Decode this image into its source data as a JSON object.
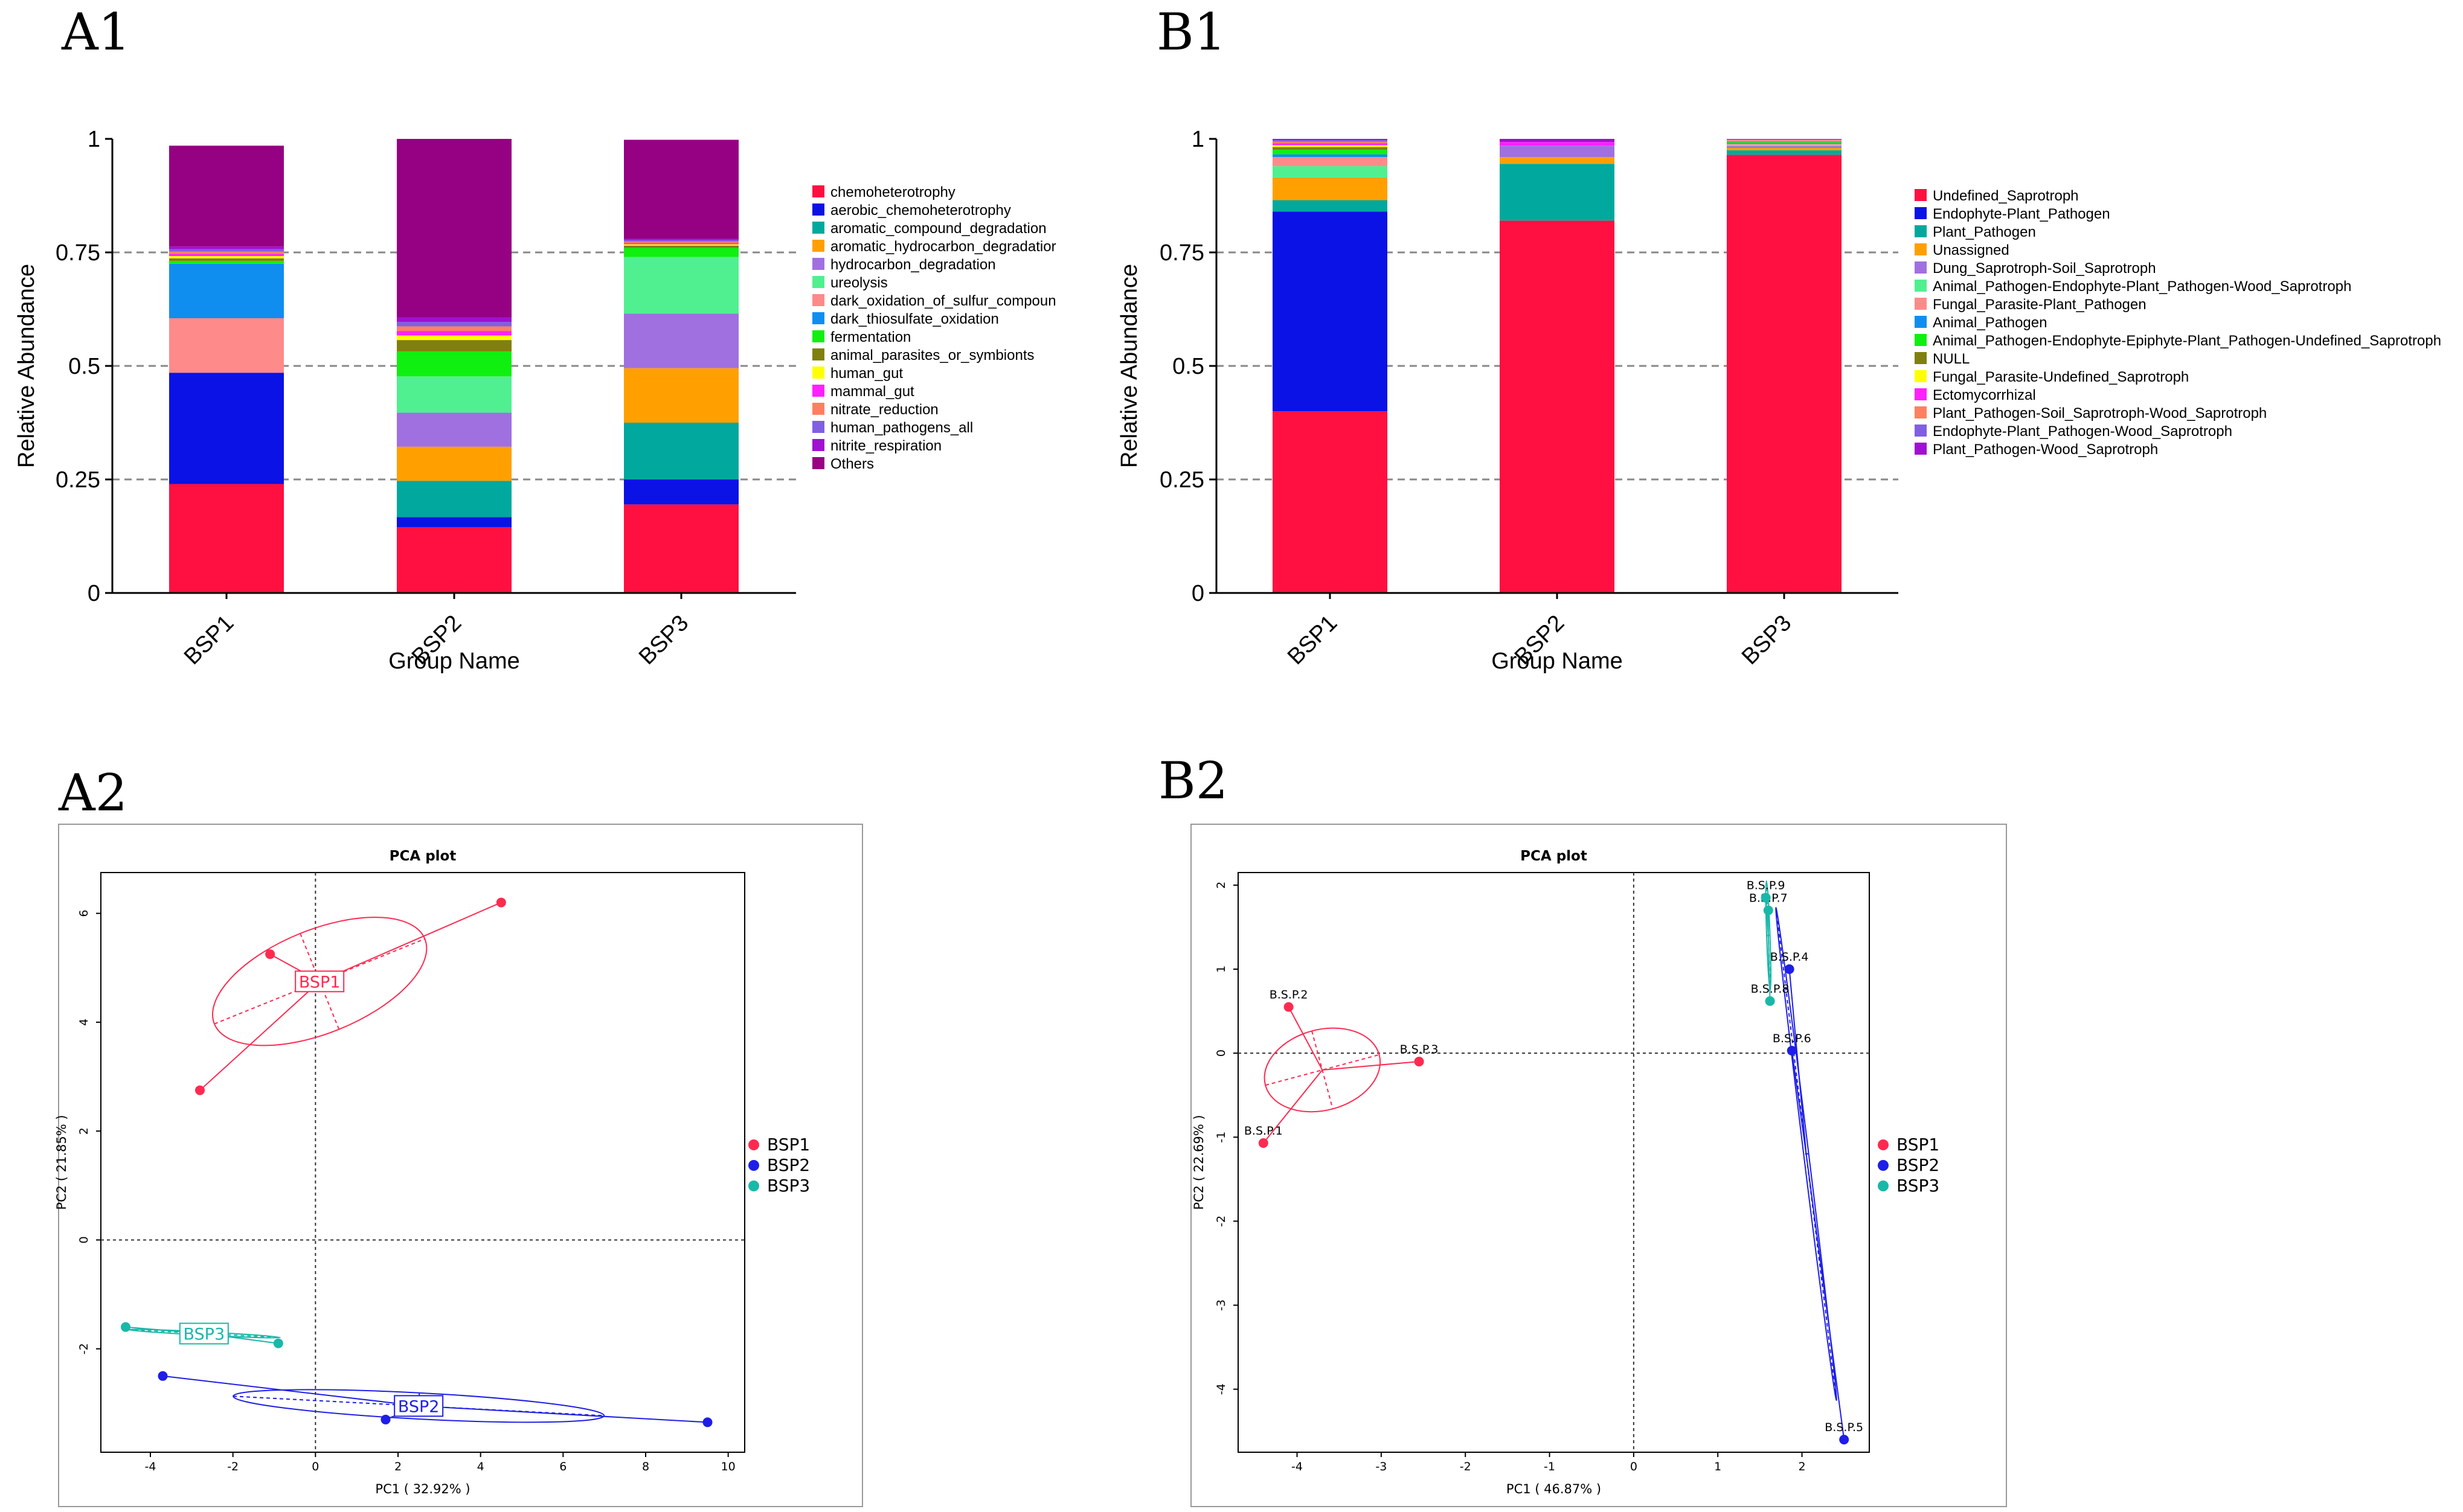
{
  "panels": {
    "a1": "A1",
    "b1": "B1",
    "a2": "A2",
    "b2": "B2"
  },
  "chart_data": [
    {
      "id": "A1",
      "type": "bar",
      "stacked": true,
      "xlabel": "Group Name",
      "ylabel": "Relative Abundance",
      "ylim": [
        0,
        1
      ],
      "yticks": [
        "0",
        "0.25",
        "0.5",
        "0.75",
        "1"
      ],
      "grid": "dashed at 0.25, 0.5, 0.75",
      "legend_position": "right",
      "categories": [
        "BSP1",
        "BSP2",
        "BSP3"
      ],
      "series": [
        {
          "name": "chemoheterotrophy",
          "color": "#ff1040",
          "values": [
            0.24,
            0.145,
            0.195
          ]
        },
        {
          "name": "aerobic_chemoheterotrophy",
          "color": "#0a12e6",
          "values": [
            0.245,
            0.022,
            0.055
          ]
        },
        {
          "name": "aromatic_compound_degradation",
          "color": "#00a89e",
          "values": [
            0.0,
            0.08,
            0.125
          ]
        },
        {
          "name": "aromatic_hydrocarbon_degradatior",
          "color": "#ffa000",
          "values": [
            0.0,
            0.075,
            0.12
          ]
        },
        {
          "name": "hydrocarbon_degradation",
          "color": "#a070e0",
          "values": [
            0.0,
            0.075,
            0.12
          ]
        },
        {
          "name": "ureolysis",
          "color": "#50f090",
          "values": [
            0.0,
            0.08,
            0.125
          ]
        },
        {
          "name": "dark_oxidation_of_sulfur_compoun",
          "color": "#ff8a8a",
          "values": [
            0.12,
            0.0,
            0.0
          ]
        },
        {
          "name": "dark_thiosulfate_oxidation",
          "color": "#108ef0",
          "values": [
            0.12,
            0.0,
            0.0
          ]
        },
        {
          "name": "fermentation",
          "color": "#10f010",
          "values": [
            0.006,
            0.055,
            0.02
          ]
        },
        {
          "name": "animal_parasites_or_symbionts",
          "color": "#808010",
          "values": [
            0.006,
            0.025,
            0.005
          ]
        },
        {
          "name": "human_gut",
          "color": "#ffff00",
          "values": [
            0.005,
            0.01,
            0.003
          ]
        },
        {
          "name": "mammal_gut",
          "color": "#ff20ff",
          "values": [
            0.005,
            0.01,
            0.003
          ]
        },
        {
          "name": "nitrate_reduction",
          "color": "#ff8060",
          "values": [
            0.005,
            0.01,
            0.003
          ]
        },
        {
          "name": "human_pathogens_all",
          "color": "#8060e0",
          "values": [
            0.005,
            0.01,
            0.003
          ]
        },
        {
          "name": "nitrite_respiration",
          "color": "#a010d0",
          "values": [
            0.006,
            0.01,
            0.003
          ]
        },
        {
          "name": "Others",
          "color": "#960082",
          "values": [
            0.222,
            0.393,
            0.218
          ]
        }
      ]
    },
    {
      "id": "B1",
      "type": "bar",
      "stacked": true,
      "xlabel": "Group Name",
      "ylabel": "Relative Abundance",
      "ylim": [
        0,
        1
      ],
      "yticks": [
        "0",
        "0.25",
        "0.5",
        "0.75",
        "1"
      ],
      "grid": "dashed at 0.25, 0.5, 0.75",
      "legend_position": "right",
      "categories": [
        "BSP1",
        "BSP2",
        "BSP3"
      ],
      "series": [
        {
          "name": "Undefined_Saprotroph",
          "color": "#ff1040",
          "values": [
            0.4,
            0.82,
            0.965
          ]
        },
        {
          "name": "Endophyte-Plant_Pathogen",
          "color": "#0a12e6",
          "values": [
            0.44,
            0.0,
            0.0
          ]
        },
        {
          "name": "Plant_Pathogen",
          "color": "#00a89e",
          "values": [
            0.025,
            0.125,
            0.01
          ]
        },
        {
          "name": "Unassigned",
          "color": "#ffa000",
          "values": [
            0.05,
            0.015,
            0.005
          ]
        },
        {
          "name": "Dung_Saprotroph-Soil_Saprotroph",
          "color": "#a070e0",
          "values": [
            0.0,
            0.025,
            0.004
          ]
        },
        {
          "name": "Animal_Pathogen-Endophyte-Plant_Pathogen-Wood_Saprotroph",
          "color": "#50f090",
          "values": [
            0.025,
            0.0,
            0.003
          ]
        },
        {
          "name": "Fungal_Parasite-Plant_Pathogen",
          "color": "#ff8a8a",
          "values": [
            0.02,
            0.0,
            0.002
          ]
        },
        {
          "name": "Animal_Pathogen",
          "color": "#108ef0",
          "values": [
            0.006,
            0.0,
            0.002
          ]
        },
        {
          "name": "Animal_Pathogen-Endophyte-Epiphyte-Plant_Pathogen-Undefined_Saprotroph",
          "color": "#10f010",
          "values": [
            0.01,
            0.0,
            0.002
          ]
        },
        {
          "name": "NULL",
          "color": "#808010",
          "values": [
            0.006,
            0.0,
            0.002
          ]
        },
        {
          "name": "Fungal_Parasite-Undefined_Saprotroph",
          "color": "#ffff00",
          "values": [
            0.004,
            0.0,
            0.001
          ]
        },
        {
          "name": "Ectomycorrhizal",
          "color": "#ff20ff",
          "values": [
            0.004,
            0.008,
            0.001
          ]
        },
        {
          "name": "Plant_Pathogen-Soil_Saprotroph-Wood_Saprotroph",
          "color": "#ff8060",
          "values": [
            0.004,
            0.0,
            0.001
          ]
        },
        {
          "name": "Endophyte-Plant_Pathogen-Wood_Saprotroph",
          "color": "#8060e0",
          "values": [
            0.003,
            0.0,
            0.001
          ]
        },
        {
          "name": "Plant_Pathogen-Wood_Saprotroph",
          "color": "#a010d0",
          "values": [
            0.003,
            0.007,
            0.001
          ]
        }
      ]
    },
    {
      "id": "A2",
      "type": "scatter",
      "title": "PCA plot",
      "xlabel": "PC1 ( 32.92% )",
      "ylabel": "PC2 ( 21.85% )",
      "xlim": [
        -5.2,
        10.4
      ],
      "ylim": [
        -3.9,
        6.75
      ],
      "xticks": [
        -4,
        -2,
        0,
        2,
        4,
        6,
        8,
        10
      ],
      "yticks": [
        -2,
        0,
        2,
        4,
        6
      ],
      "legend_position": "right",
      "series": [
        {
          "name": "BSP1",
          "color": "#ff2a50",
          "label_text": "BSP1",
          "centroid": [
            0.1,
            4.75
          ],
          "points": [
            [
              4.5,
              6.2
            ],
            [
              -1.1,
              5.25
            ],
            [
              -2.8,
              2.75
            ]
          ],
          "ellipse": {
            "rx": 2.75,
            "ry": 0.95,
            "angle_deg": 22
          }
        },
        {
          "name": "BSP2",
          "color": "#1e1ee8",
          "label_text": "BSP2",
          "centroid": [
            2.5,
            -3.05
          ],
          "points": [
            [
              -3.7,
              -2.5
            ],
            [
              1.7,
              -3.3
            ],
            [
              9.5,
              -3.35
            ]
          ],
          "ellipse": {
            "rx": 4.5,
            "ry": 0.24,
            "angle_deg": -3
          }
        },
        {
          "name": "BSP3",
          "color": "#18b8a8",
          "label_text": "BSP3",
          "centroid": [
            -2.7,
            -1.72
          ],
          "points": [
            [
              -4.6,
              -1.6
            ],
            [
              -0.9,
              -1.9
            ]
          ],
          "ellipse": {
            "rx": 1.85,
            "ry": 0.03,
            "angle_deg": -3
          }
        }
      ]
    },
    {
      "id": "B2",
      "type": "scatter",
      "title": "PCA plot",
      "xlabel": "PC1 ( 46.87% )",
      "ylabel": "PC2 ( 22.69% )",
      "xlim": [
        -4.7,
        2.8
      ],
      "ylim": [
        -4.75,
        2.15
      ],
      "xticks": [
        -4,
        -3,
        -2,
        -1,
        0,
        1,
        2
      ],
      "yticks": [
        -4,
        -3,
        -2,
        -1,
        0,
        1,
        2
      ],
      "legend_position": "right",
      "series": [
        {
          "name": "BSP1",
          "color": "#ff2a50",
          "centroid": [
            -3.7,
            -0.2
          ],
          "points": [
            [
              -4.4,
              -1.07,
              "B.S.P.1"
            ],
            [
              -4.1,
              0.55,
              "B.S.P.2"
            ],
            [
              -2.55,
              -0.1,
              "B.S.P.3"
            ]
          ],
          "ellipse": {
            "rx": 0.7,
            "ry": 0.48,
            "angle_deg": 15
          }
        },
        {
          "name": "BSP2",
          "color": "#1e1ee8",
          "centroid": [
            2.05,
            -1.2
          ],
          "points": [
            [
              1.85,
              1.0,
              "B.S.P.4"
            ],
            [
              2.5,
              -4.6,
              "B.S.P.5"
            ],
            [
              1.88,
              0.03,
              "B.S.P.6"
            ]
          ],
          "ellipse": {
            "rx": 2.95,
            "ry": 0.03,
            "angle_deg": -83
          }
        },
        {
          "name": "BSP3",
          "color": "#18b8a8",
          "centroid": [
            1.6,
            1.4
          ],
          "points": [
            [
              1.6,
              1.7,
              "B.S.P.7"
            ],
            [
              1.62,
              0.62,
              "B.S.P.8"
            ],
            [
              1.57,
              1.85,
              "B.S.P.9"
            ]
          ],
          "ellipse": {
            "rx": 0.65,
            "ry": 0.02,
            "angle_deg": -88
          }
        }
      ]
    }
  ]
}
